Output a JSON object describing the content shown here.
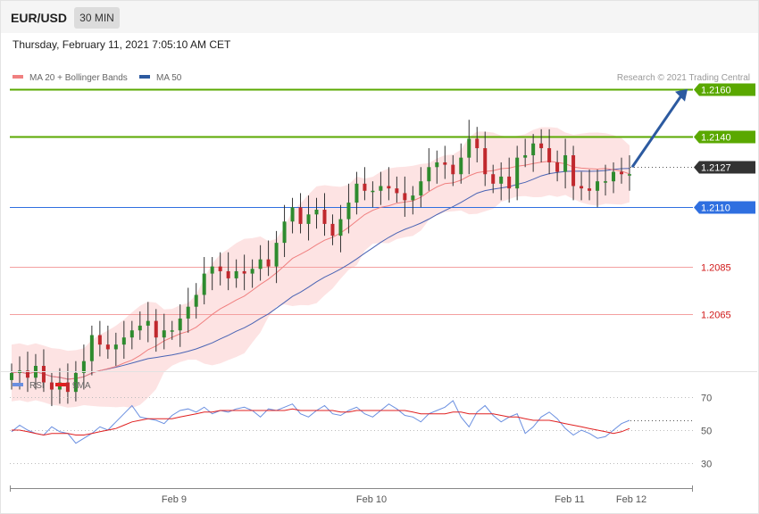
{
  "header": {
    "symbol": "EUR/USD",
    "timeframe": "30 MIN",
    "datetime": "Thursday, February 11, 2021 7:05:10 AM CET"
  },
  "legend": {
    "items": [
      {
        "label": "MA 20 + Bollinger Bands",
        "color": "#f08080"
      },
      {
        "label": "MA 50",
        "color": "#2c5aa0"
      }
    ],
    "copyright": "Research © 2021 Trading Central"
  },
  "colors": {
    "up": "#2e8b2e",
    "down": "#c0282d",
    "band": "#fde0e0",
    "ma20": "#f08080",
    "ma50": "#4a64b4",
    "green_level": "#5aa800",
    "pivot": "#333333",
    "support": "#2f6fe0",
    "resistance_red": "#f4a0a0",
    "arrow": "#2c5aa0",
    "rsi": "#6a8fe0",
    "rsi_ma": "#e02020"
  },
  "chart_data": [
    {
      "type": "candlestick",
      "title": "",
      "ylim": [
        1.2043,
        1.2175
      ],
      "x_ticks": [
        "Feb 9",
        "Feb 10",
        "Feb 11",
        "Feb 12"
      ],
      "levels": [
        {
          "value": 1.216,
          "label": "1.2160",
          "style": "target"
        },
        {
          "value": 1.214,
          "label": "1.2140",
          "style": "target"
        },
        {
          "value": 1.2127,
          "label": "1.2127",
          "style": "pivot"
        },
        {
          "value": 1.211,
          "label": "1.2110",
          "style": "support"
        },
        {
          "value": 1.2085,
          "label": "1.2085",
          "style": "lower"
        },
        {
          "value": 1.2065,
          "label": "1.2065",
          "style": "lower"
        }
      ],
      "close_series": [
        1.204,
        1.2041,
        1.2038,
        1.2043,
        1.2036,
        1.2033,
        1.2036,
        1.2032,
        1.204,
        1.2045,
        1.2056,
        1.2052,
        1.205,
        1.2052,
        1.2055,
        1.2058,
        1.206,
        1.2062,
        1.2055,
        1.2058,
        1.2058,
        1.2063,
        1.2068,
        1.2073,
        1.2082,
        1.2085,
        1.2083,
        1.208,
        1.2083,
        1.2082,
        1.2084,
        1.2088,
        1.2085,
        1.2095,
        1.2104,
        1.211,
        1.2103,
        1.2107,
        1.2109,
        1.2103,
        1.2098,
        1.2105,
        1.2112,
        1.212,
        1.2117,
        1.2117,
        1.2119,
        1.2118,
        1.2116,
        1.2113,
        1.2115,
        1.2121,
        1.2127,
        1.2129,
        1.2128,
        1.2124,
        1.2131,
        1.2139,
        1.2135,
        1.2124,
        1.212,
        1.2123,
        1.2118,
        1.2131,
        1.2132,
        1.2137,
        1.2135,
        1.2129,
        1.2125,
        1.2132,
        1.2119,
        1.2118,
        1.2117,
        1.2121,
        1.2121,
        1.2125,
        1.2124,
        1.2124
      ],
      "price_range_hint": {
        "low": 1.203,
        "high": 1.214
      }
    },
    {
      "type": "line",
      "title": "",
      "ylim": [
        20,
        80
      ],
      "y_ticks": [
        30,
        50,
        70
      ],
      "series": [
        {
          "name": "RSI",
          "values": [
            49,
            53,
            50,
            48,
            47,
            52,
            49,
            48,
            42,
            45,
            48,
            52,
            50,
            55,
            60,
            65,
            58,
            57,
            56,
            54,
            59,
            62,
            63,
            61,
            64,
            60,
            62,
            61,
            63,
            64,
            62,
            58,
            63,
            62,
            64,
            66,
            60,
            58,
            62,
            65,
            60,
            59,
            62,
            64,
            60,
            58,
            62,
            66,
            63,
            59,
            58,
            55,
            60,
            62,
            64,
            68,
            58,
            52,
            61,
            65,
            59,
            55,
            58,
            60,
            48,
            52,
            58,
            61,
            57,
            51,
            47,
            50,
            48,
            45,
            46,
            50,
            54,
            56
          ]
        },
        {
          "name": "9MA",
          "values": [
            50,
            50,
            49,
            48,
            47,
            48,
            48,
            48,
            47,
            47,
            48,
            49,
            50,
            51,
            53,
            55,
            56,
            57,
            57,
            57,
            57,
            58,
            59,
            60,
            61,
            61,
            62,
            62,
            62,
            62,
            62,
            62,
            62,
            62,
            62,
            63,
            62,
            62,
            62,
            62,
            62,
            61,
            61,
            62,
            62,
            62,
            62,
            62,
            62,
            62,
            61,
            60,
            60,
            60,
            60,
            61,
            61,
            60,
            60,
            60,
            60,
            59,
            58,
            58,
            57,
            56,
            56,
            56,
            55,
            54,
            53,
            52,
            51,
            50,
            49,
            48,
            49,
            51
          ]
        }
      ]
    }
  ]
}
